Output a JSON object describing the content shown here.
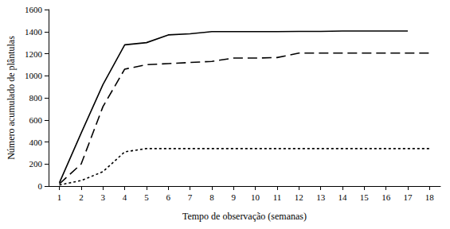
{
  "chart_data": {
    "type": "line",
    "x_label": "Tempo de observação (semanas)",
    "y_label": "Número acumulado de plântulas",
    "categories": [
      "1",
      "2",
      "3",
      "4",
      "5",
      "6",
      "7",
      "8",
      "9",
      "10",
      "11",
      "12",
      "13",
      "14",
      "15",
      "16",
      "17",
      "18"
    ],
    "series": [
      {
        "color": "#000000",
        "line_style": "solid",
        "values": [
          30,
          480,
          920,
          1280,
          1300,
          1370,
          1380,
          1400,
          1400,
          1400,
          1400,
          1402,
          1402,
          1405,
          1405,
          1405,
          1405,
          null
        ]
      },
      {
        "color": "#000000",
        "line_style": "dashed",
        "values": [
          20,
          200,
          720,
          1060,
          1100,
          1110,
          1120,
          1130,
          1160,
          1160,
          1165,
          1205,
          1205,
          1205,
          1205,
          1205,
          1205,
          1205
        ]
      },
      {
        "color": "#000000",
        "line_style": "dotted",
        "values": [
          10,
          50,
          130,
          310,
          340,
          340,
          340,
          340,
          340,
          340,
          340,
          340,
          340,
          340,
          340,
          340,
          340,
          340
        ]
      }
    ],
    "ylim": [
      0,
      1600
    ],
    "yticks": [
      0,
      200,
      400,
      600,
      800,
      1000,
      1200,
      1400,
      1600
    ],
    "grid": false
  }
}
